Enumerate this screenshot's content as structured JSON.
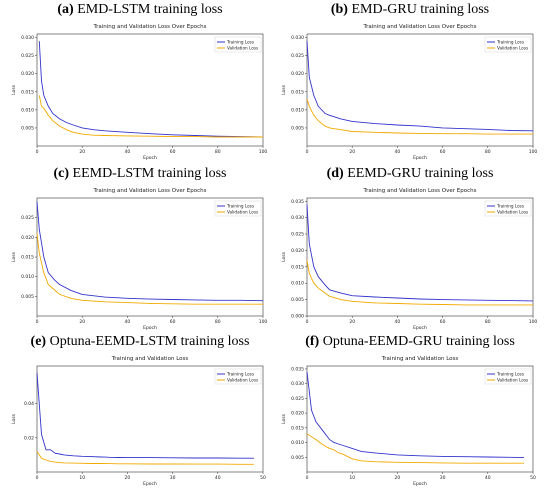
{
  "colors": {
    "training": "#3333cc",
    "validation": "#f2a900",
    "axis": "#333333"
  },
  "panels": [
    {
      "letter": "(a)",
      "title": "EMD-LSTM training loss"
    },
    {
      "letter": "(b)",
      "title": "EMD-GRU training loss"
    },
    {
      "letter": "(c)",
      "title": "EEMD-LSTM training loss"
    },
    {
      "letter": "(d)",
      "title": "EEMD-GRU training loss"
    },
    {
      "letter": "(e)",
      "title": "Optuna-EEMD-LSTM training loss"
    },
    {
      "letter": "(f)",
      "title": "Optuna-EEMD-GRU training loss"
    }
  ],
  "chart_data": [
    {
      "type": "line",
      "title": "Training and Validation Loss Over Epochs",
      "xlabel": "Epoch",
      "ylabel": "Loss",
      "xlim": [
        0,
        100
      ],
      "ylim": [
        0,
        0.031
      ],
      "xticks": [
        0,
        20,
        40,
        60,
        80,
        100
      ],
      "yticks": [
        0.005,
        0.01,
        0.015,
        0.02,
        0.025,
        0.03
      ],
      "ytick_labels": [
        "0.005",
        "0.010",
        "0.015",
        "0.020",
        "0.025",
        "0.030"
      ],
      "legend": "top-right",
      "series": [
        {
          "name": "Training Loss",
          "x": [
            1,
            2,
            3,
            5,
            7,
            10,
            13,
            16,
            20,
            25,
            30,
            40,
            50,
            60,
            70,
            80,
            90,
            100
          ],
          "values": [
            0.029,
            0.018,
            0.014,
            0.011,
            0.009,
            0.0075,
            0.0065,
            0.0058,
            0.005,
            0.0045,
            0.0042,
            0.0038,
            0.0034,
            0.0031,
            0.0029,
            0.0027,
            0.0026,
            0.0025
          ]
        },
        {
          "name": "Validation Loss",
          "x": [
            1,
            2,
            3,
            5,
            7,
            10,
            13,
            16,
            20,
            25,
            30,
            40,
            50,
            60,
            70,
            80,
            90,
            100
          ],
          "values": [
            0.014,
            0.011,
            0.0105,
            0.0085,
            0.007,
            0.0055,
            0.0045,
            0.0038,
            0.0033,
            0.003,
            0.0029,
            0.0028,
            0.0027,
            0.0026,
            0.0026,
            0.0025,
            0.0025,
            0.0025
          ]
        }
      ]
    },
    {
      "type": "line",
      "title": "Training and Validation Loss Over Epochs",
      "xlabel": "Epoch",
      "ylabel": "Loss",
      "xlim": [
        0,
        100
      ],
      "ylim": [
        0,
        0.031
      ],
      "xticks": [
        0,
        20,
        40,
        60,
        80,
        100
      ],
      "yticks": [
        0.005,
        0.01,
        0.015,
        0.02,
        0.025,
        0.03
      ],
      "ytick_labels": [
        "0.005",
        "0.010",
        "0.015",
        "0.020",
        "0.025",
        "0.030"
      ],
      "legend": "top-right",
      "series": [
        {
          "name": "Training Loss",
          "x": [
            0,
            1,
            3,
            5,
            8,
            10,
            15,
            20,
            30,
            40,
            50,
            60,
            70,
            80,
            90,
            100
          ],
          "values": [
            0.029,
            0.019,
            0.014,
            0.011,
            0.009,
            0.0085,
            0.0075,
            0.0068,
            0.0062,
            0.0058,
            0.0055,
            0.005,
            0.0048,
            0.0046,
            0.0043,
            0.0042
          ]
        },
        {
          "name": "Validation Loss",
          "x": [
            0,
            1,
            3,
            5,
            8,
            10,
            15,
            20,
            30,
            40,
            50,
            60,
            70,
            80,
            90,
            100
          ],
          "values": [
            0.013,
            0.011,
            0.0085,
            0.007,
            0.0055,
            0.005,
            0.0045,
            0.004,
            0.0038,
            0.0036,
            0.0035,
            0.0034,
            0.0034,
            0.0033,
            0.0033,
            0.0033
          ]
        }
      ]
    },
    {
      "type": "line",
      "title": "Training and Validation Loss Over Epochs",
      "xlabel": "Epoch",
      "ylabel": "Loss",
      "xlim": [
        0,
        100
      ],
      "ylim": [
        0,
        0.03
      ],
      "xticks": [
        0,
        20,
        40,
        60,
        80,
        100
      ],
      "yticks": [
        0.005,
        0.01,
        0.015,
        0.02,
        0.025
      ],
      "ytick_labels": [
        "0.005",
        "0.010",
        "0.015",
        "0.020",
        "0.025"
      ],
      "legend": "top-right",
      "series": [
        {
          "name": "Training Loss",
          "x": [
            0,
            1,
            3,
            5,
            8,
            10,
            15,
            20,
            30,
            40,
            50,
            60,
            70,
            80,
            90,
            100
          ],
          "values": [
            0.029,
            0.022,
            0.015,
            0.011,
            0.009,
            0.008,
            0.0065,
            0.0055,
            0.0048,
            0.0045,
            0.0043,
            0.0042,
            0.0041,
            0.004,
            0.004,
            0.0039
          ]
        },
        {
          "name": "Validation Loss",
          "x": [
            0,
            1,
            3,
            5,
            8,
            10,
            15,
            20,
            30,
            40,
            50,
            60,
            70,
            80,
            90,
            100
          ],
          "values": [
            0.021,
            0.016,
            0.011,
            0.008,
            0.0065,
            0.0055,
            0.0045,
            0.004,
            0.0036,
            0.0034,
            0.0032,
            0.0031,
            0.003,
            0.003,
            0.003,
            0.003
          ]
        }
      ]
    },
    {
      "type": "line",
      "title": "Training and Validation Loss Over Epochs",
      "xlabel": "Epoch",
      "ylabel": "Loss",
      "xlim": [
        0,
        100
      ],
      "ylim": [
        0,
        0.036
      ],
      "xticks": [
        0,
        20,
        40,
        60,
        80,
        100
      ],
      "yticks": [
        0,
        0.005,
        0.01,
        0.015,
        0.02,
        0.025,
        0.03,
        0.035
      ],
      "ytick_labels": [
        "0.000",
        "0.005",
        "0.010",
        "0.015",
        "0.020",
        "0.025",
        "0.030",
        "0.035"
      ],
      "legend": "top-right",
      "series": [
        {
          "name": "Training Loss",
          "x": [
            0,
            1,
            3,
            5,
            8,
            10,
            15,
            20,
            30,
            40,
            50,
            60,
            70,
            80,
            90,
            100
          ],
          "values": [
            0.034,
            0.022,
            0.015,
            0.012,
            0.0095,
            0.008,
            0.007,
            0.0062,
            0.0058,
            0.0055,
            0.0052,
            0.005,
            0.0049,
            0.0048,
            0.0047,
            0.0046
          ]
        },
        {
          "name": "Validation Loss",
          "x": [
            0,
            1,
            3,
            5,
            8,
            10,
            15,
            20,
            30,
            40,
            50,
            60,
            70,
            80,
            90,
            100
          ],
          "values": [
            0.017,
            0.013,
            0.01,
            0.0085,
            0.007,
            0.006,
            0.005,
            0.0045,
            0.004,
            0.0038,
            0.0036,
            0.0035,
            0.0034,
            0.0034,
            0.0034,
            0.0034
          ]
        }
      ]
    },
    {
      "type": "line",
      "title": "Training and Validation Loss",
      "xlabel": "Epoch",
      "ylabel": "Loss",
      "xlim": [
        0,
        50
      ],
      "ylim": [
        0,
        0.062
      ],
      "xticks": [
        0,
        10,
        20,
        30,
        40,
        50
      ],
      "yticks": [
        0.02,
        0.04
      ],
      "ytick_labels": [
        "0.02",
        "0.04"
      ],
      "legend": "top-right",
      "series": [
        {
          "name": "Training Loss",
          "x": [
            0,
            1,
            2,
            3,
            4,
            5,
            6,
            8,
            10,
            12,
            14,
            15,
            16,
            18,
            20,
            25,
            30,
            35,
            40,
            45,
            48
          ],
          "values": [
            0.058,
            0.022,
            0.013,
            0.013,
            0.011,
            0.0105,
            0.01,
            0.0095,
            0.0092,
            0.009,
            0.0088,
            0.0087,
            0.0086,
            0.0085,
            0.0084,
            0.0084,
            0.0083,
            0.0082,
            0.0082,
            0.0081,
            0.0081
          ]
        },
        {
          "name": "Validation Loss",
          "x": [
            0,
            1,
            2,
            3,
            4,
            5,
            6,
            8,
            10,
            12,
            14,
            15,
            16,
            18,
            20,
            25,
            30,
            35,
            40,
            45,
            48
          ],
          "values": [
            0.012,
            0.008,
            0.007,
            0.0062,
            0.0058,
            0.0055,
            0.0053,
            0.0052,
            0.0051,
            0.005,
            0.005,
            0.0049,
            0.0049,
            0.0048,
            0.0048,
            0.0047,
            0.0047,
            0.0046,
            0.0046,
            0.0045,
            0.0045
          ]
        }
      ]
    },
    {
      "type": "line",
      "title": "Training and Validation Loss",
      "xlabel": "Epoch",
      "ylabel": "Loss",
      "xlim": [
        0,
        50
      ],
      "ylim": [
        0,
        0.036
      ],
      "xticks": [
        0,
        10,
        20,
        30,
        40,
        50
      ],
      "yticks": [
        0.005,
        0.01,
        0.015,
        0.02,
        0.025,
        0.03,
        0.035
      ],
      "ytick_labels": [
        "0.005",
        "0.010",
        "0.015",
        "0.020",
        "0.025",
        "0.030",
        "0.035"
      ],
      "legend": "top-right",
      "series": [
        {
          "name": "Training Loss",
          "x": [
            0,
            1,
            2,
            3,
            4,
            5,
            6,
            7,
            8,
            10,
            12,
            15,
            20,
            25,
            30,
            35,
            40,
            45,
            48
          ],
          "values": [
            0.034,
            0.021,
            0.017,
            0.015,
            0.013,
            0.011,
            0.01,
            0.0095,
            0.009,
            0.008,
            0.007,
            0.0065,
            0.0058,
            0.0055,
            0.0053,
            0.0052,
            0.0051,
            0.005,
            0.0049
          ]
        },
        {
          "name": "Validation Loss",
          "x": [
            0,
            1,
            2,
            3,
            4,
            5,
            6,
            7,
            8,
            10,
            12,
            15,
            20,
            25,
            30,
            35,
            40,
            45,
            48
          ],
          "values": [
            0.013,
            0.012,
            0.011,
            0.0098,
            0.0088,
            0.008,
            0.0075,
            0.0065,
            0.006,
            0.0045,
            0.0038,
            0.0035,
            0.0033,
            0.0032,
            0.0031,
            0.003,
            0.003,
            0.003,
            0.003
          ]
        }
      ]
    }
  ]
}
